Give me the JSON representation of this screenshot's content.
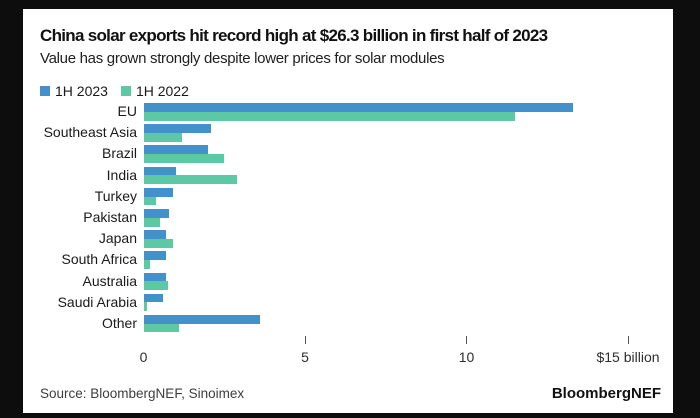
{
  "frame": {
    "outer_bg": "#0d0d0d",
    "card_bg": "#ffffff"
  },
  "header": {
    "title": "China solar exports hit record high at $26.3 billion in first half of 2023",
    "subtitle": "Value has grown strongly despite lower prices for solar modules"
  },
  "legend": [
    {
      "label": "1H 2023",
      "color": "#4291CA"
    },
    {
      "label": "1H 2022",
      "color": "#5DC8A4"
    }
  ],
  "chart_data": {
    "type": "bar",
    "orientation": "horizontal",
    "title": "China solar exports hit record high at $26.3 billion in first half of 2023",
    "subtitle": "Value has grown strongly despite lower prices for solar modules",
    "xlabel": "$ billion",
    "xlim": [
      0,
      15
    ],
    "grid": false,
    "legend_position": "top-left",
    "categories": [
      "EU",
      "Southeast Asia",
      "Brazil",
      "India",
      "Turkey",
      "Pakistan",
      "Japan",
      "South Africa",
      "Australia",
      "Saudi Arabia",
      "Other"
    ],
    "series": [
      {
        "name": "1H 2023",
        "color": "#4291CA",
        "values": [
          13.3,
          2.1,
          2.0,
          1.0,
          0.9,
          0.8,
          0.7,
          0.7,
          0.7,
          0.6,
          3.6
        ]
      },
      {
        "name": "1H 2022",
        "color": "#5DC8A4",
        "values": [
          11.5,
          1.2,
          2.5,
          2.9,
          0.4,
          0.5,
          0.9,
          0.2,
          0.75,
          0.1,
          1.1
        ]
      }
    ],
    "xticks": [
      {
        "value": 0,
        "label": "0",
        "mark": false
      },
      {
        "value": 5,
        "label": "5",
        "mark": true
      },
      {
        "value": 10,
        "label": "10",
        "mark": true
      },
      {
        "value": 15,
        "label": "$15 billion",
        "mark": true
      }
    ]
  },
  "footer": {
    "source": "Source: BloombergNEF, Sinoimex",
    "brand": "BloombergNEF"
  }
}
